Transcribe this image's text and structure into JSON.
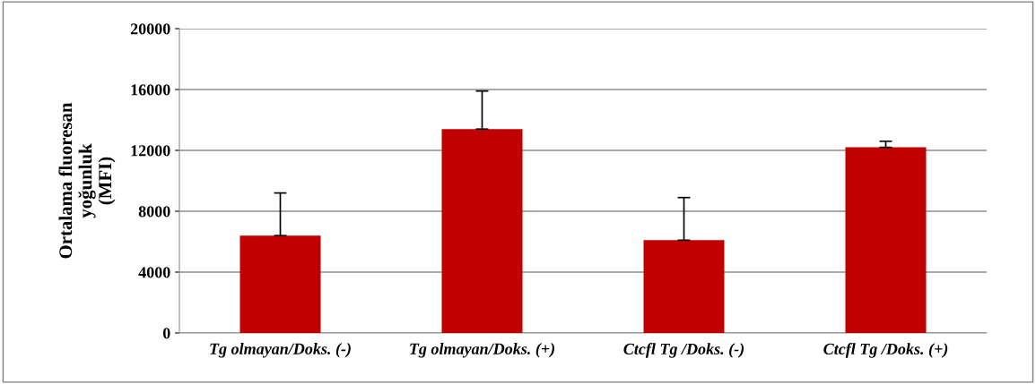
{
  "chart_data": {
    "type": "bar",
    "ylabel": "Ortalama fluoresan\nyoğunluk\n(MFI)",
    "categories": [
      "Tg olmayan/Doks. (-)",
      "Tg olmayan/Doks. (+)",
      "Ctcfl Tg /Doks. (-)",
      "Ctcfl Tg /Doks. (+)"
    ],
    "values": [
      6400,
      13400,
      6100,
      12200
    ],
    "errors": [
      [
        6400,
        9200
      ],
      [
        13400,
        15900
      ],
      [
        6100,
        8900
      ],
      [
        12200,
        12600
      ]
    ],
    "color": "#c00000",
    "ylim": [
      0,
      20000
    ],
    "yticks": [
      0,
      4000,
      8000,
      12000,
      16000,
      20000
    ],
    "grid": "y"
  }
}
